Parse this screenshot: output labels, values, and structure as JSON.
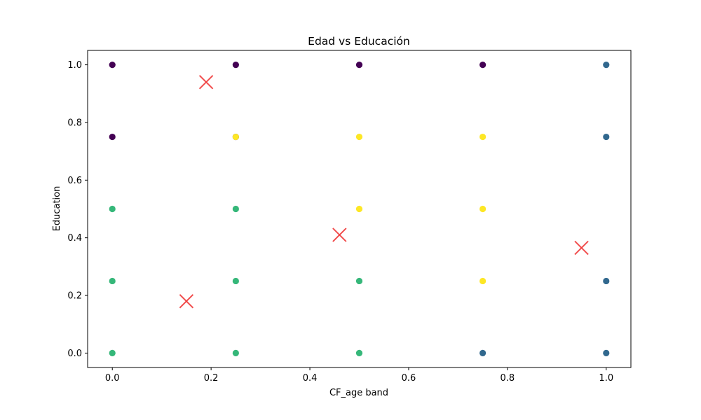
{
  "chart_data": {
    "type": "scatter",
    "title": "Edad vs Educación",
    "xlabel": "CF_age band",
    "ylabel": "Education",
    "xlim": [
      -0.05,
      1.05
    ],
    "ylim": [
      -0.05,
      1.05
    ],
    "xticks": [
      0.0,
      0.2,
      0.4,
      0.6,
      0.8,
      1.0
    ],
    "yticks": [
      0.0,
      0.2,
      0.4,
      0.6,
      0.8,
      1.0
    ],
    "xtick_labels": [
      "0.0",
      "0.2",
      "0.4",
      "0.6",
      "0.8",
      "1.0"
    ],
    "ytick_labels": [
      "0.0",
      "0.2",
      "0.4",
      "0.6",
      "0.8",
      "1.0"
    ],
    "grid": false,
    "colors": {
      "cluster_purple": "#440154",
      "cluster_blue": "#31688e",
      "cluster_green": "#35b779",
      "cluster_yellow": "#fde725",
      "centroid": "#f03b3b"
    },
    "points": [
      {
        "x": 0.0,
        "y": 1.0,
        "cluster": "cluster_purple"
      },
      {
        "x": 0.0,
        "y": 0.75,
        "cluster": "cluster_purple"
      },
      {
        "x": 0.0,
        "y": 0.5,
        "cluster": "cluster_green"
      },
      {
        "x": 0.0,
        "y": 0.25,
        "cluster": "cluster_green"
      },
      {
        "x": 0.0,
        "y": 0.0,
        "cluster": "cluster_green"
      },
      {
        "x": 0.25,
        "y": 1.0,
        "cluster": "cluster_purple"
      },
      {
        "x": 0.25,
        "y": 0.75,
        "cluster": "cluster_purple"
      },
      {
        "x": 0.25,
        "y": 0.75,
        "cluster": "cluster_yellow"
      },
      {
        "x": 0.25,
        "y": 0.5,
        "cluster": "cluster_green"
      },
      {
        "x": 0.25,
        "y": 0.25,
        "cluster": "cluster_green"
      },
      {
        "x": 0.25,
        "y": 0.0,
        "cluster": "cluster_green"
      },
      {
        "x": 0.5,
        "y": 1.0,
        "cluster": "cluster_purple"
      },
      {
        "x": 0.5,
        "y": 0.75,
        "cluster": "cluster_yellow"
      },
      {
        "x": 0.5,
        "y": 0.5,
        "cluster": "cluster_yellow"
      },
      {
        "x": 0.5,
        "y": 0.25,
        "cluster": "cluster_green"
      },
      {
        "x": 0.5,
        "y": 0.0,
        "cluster": "cluster_green"
      },
      {
        "x": 0.75,
        "y": 1.0,
        "cluster": "cluster_purple"
      },
      {
        "x": 0.75,
        "y": 0.75,
        "cluster": "cluster_yellow"
      },
      {
        "x": 0.75,
        "y": 0.5,
        "cluster": "cluster_yellow"
      },
      {
        "x": 0.75,
        "y": 0.25,
        "cluster": "cluster_yellow"
      },
      {
        "x": 0.75,
        "y": 0.0,
        "cluster": "cluster_blue"
      },
      {
        "x": 1.0,
        "y": 1.0,
        "cluster": "cluster_blue"
      },
      {
        "x": 1.0,
        "y": 0.75,
        "cluster": "cluster_blue"
      },
      {
        "x": 1.0,
        "y": 0.25,
        "cluster": "cluster_blue"
      },
      {
        "x": 1.0,
        "y": 0.0,
        "cluster": "cluster_blue"
      }
    ],
    "centroids": [
      {
        "x": 0.19,
        "y": 0.94
      },
      {
        "x": 0.15,
        "y": 0.18
      },
      {
        "x": 0.46,
        "y": 0.41
      },
      {
        "x": 0.95,
        "y": 0.365
      }
    ]
  }
}
